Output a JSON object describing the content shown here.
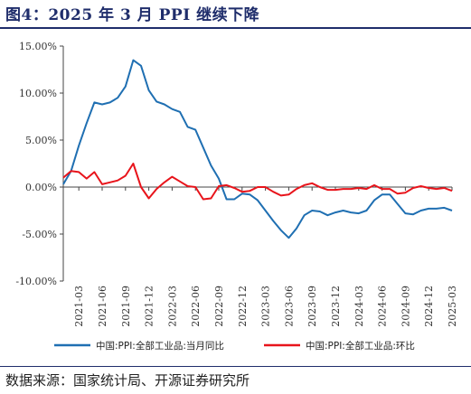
{
  "header": {
    "title": "图4：2025 年 3 月 PPI 继续下降"
  },
  "footer": {
    "source": "数据来源：国家统计局、开源证券研究所"
  },
  "colors": {
    "title": "#1f2d6b",
    "series_yoy": "#1f6fb2",
    "series_mom": "#e8141b",
    "axis": "#444444"
  },
  "chart_data": {
    "type": "line",
    "yticks": [
      "15.00%",
      "10.00%",
      "5.00%",
      "0.00%",
      "-5.00%",
      "-10.00%"
    ],
    "ylim": [
      -10,
      15
    ],
    "xticks": [
      "2021-03",
      "2021-06",
      "2021-09",
      "2021-12",
      "2022-03",
      "2022-06",
      "2022-09",
      "2022-12",
      "2023-03",
      "2023-06",
      "2023-09",
      "2023-12",
      "2024-03",
      "2024-06",
      "2024-09",
      "2024-12",
      "2025-03"
    ],
    "x": [
      "2021-01",
      "2021-02",
      "2021-03",
      "2021-04",
      "2021-05",
      "2021-06",
      "2021-07",
      "2021-08",
      "2021-09",
      "2021-10",
      "2021-11",
      "2021-12",
      "2022-01",
      "2022-02",
      "2022-03",
      "2022-04",
      "2022-05",
      "2022-06",
      "2022-07",
      "2022-08",
      "2022-09",
      "2022-10",
      "2022-11",
      "2022-12",
      "2023-01",
      "2023-02",
      "2023-03",
      "2023-04",
      "2023-05",
      "2023-06",
      "2023-07",
      "2023-08",
      "2023-09",
      "2023-10",
      "2023-11",
      "2023-12",
      "2024-01",
      "2024-02",
      "2024-03",
      "2024-04",
      "2024-05",
      "2024-06",
      "2024-07",
      "2024-08",
      "2024-09",
      "2024-10",
      "2024-11",
      "2024-12",
      "2025-01",
      "2025-02",
      "2025-03"
    ],
    "series": [
      {
        "name": "中国:PPI:全部工业品:当月同比",
        "values": [
          0.3,
          1.7,
          4.4,
          6.8,
          9.0,
          8.8,
          9.0,
          9.5,
          10.7,
          13.5,
          12.9,
          10.3,
          9.1,
          8.8,
          8.3,
          8.0,
          6.4,
          6.1,
          4.2,
          2.3,
          0.9,
          -1.3,
          -1.3,
          -0.7,
          -0.8,
          -1.4,
          -2.5,
          -3.6,
          -4.6,
          -5.4,
          -4.4,
          -3.0,
          -2.5,
          -2.6,
          -3.0,
          -2.7,
          -2.5,
          -2.7,
          -2.8,
          -2.5,
          -1.4,
          -0.8,
          -0.8,
          -1.8,
          -2.8,
          -2.9,
          -2.5,
          -2.3,
          -2.3,
          -2.2,
          -2.5
        ]
      },
      {
        "name": "中国:PPI:全部工业品:环比",
        "values": [
          1.0,
          1.7,
          1.6,
          0.9,
          1.6,
          0.3,
          0.5,
          0.7,
          1.2,
          2.5,
          0.0,
          -1.2,
          -0.2,
          0.5,
          1.1,
          0.6,
          0.1,
          0.0,
          -1.3,
          -1.2,
          0.1,
          0.2,
          -0.1,
          -0.5,
          -0.4,
          0.0,
          0.0,
          -0.5,
          -0.9,
          -0.8,
          -0.2,
          0.2,
          0.4,
          0.0,
          -0.3,
          -0.3,
          -0.2,
          -0.2,
          -0.1,
          -0.2,
          0.2,
          -0.2,
          -0.2,
          -0.7,
          -0.6,
          -0.1,
          0.1,
          -0.1,
          -0.2,
          -0.1,
          -0.4
        ]
      }
    ]
  }
}
